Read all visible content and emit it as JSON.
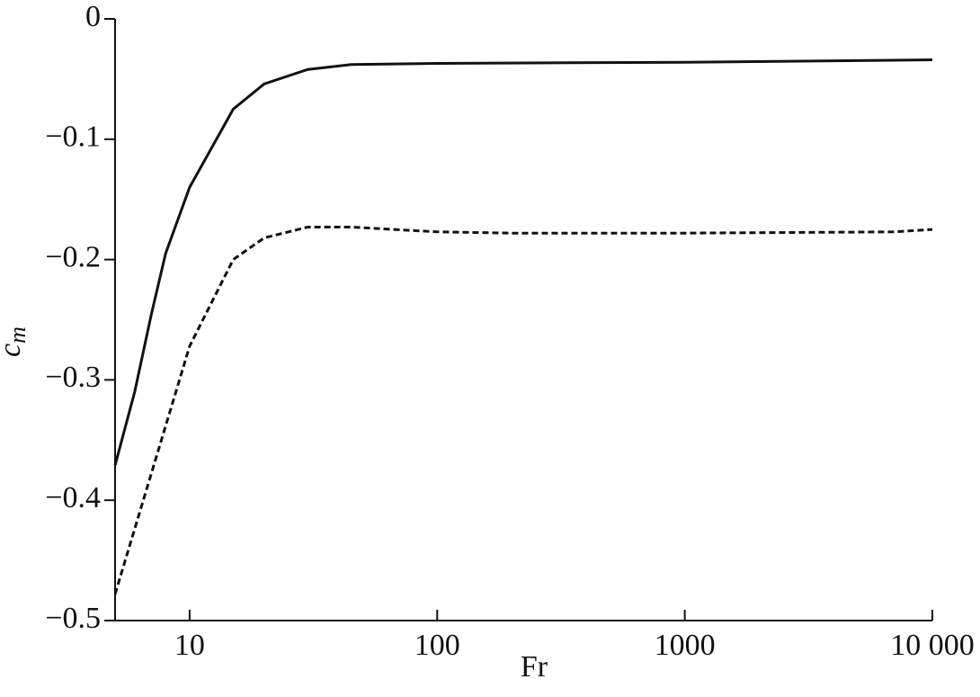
{
  "chart_data": {
    "type": "line",
    "xlabel": "Fr",
    "ylabel": {
      "base": "c",
      "sub": "m"
    },
    "x_scale": "log",
    "xlim": [
      5,
      10000
    ],
    "ylim": [
      -0.5,
      0
    ],
    "xticks": [
      10,
      100,
      1000,
      {
        "value": 10000,
        "label": "10 000"
      }
    ],
    "yticks": [
      0,
      {
        "value": -0.1,
        "label": "−0.1"
      },
      {
        "value": -0.2,
        "label": "−0.2"
      },
      {
        "value": -0.3,
        "label": "−0.3"
      },
      {
        "value": -0.4,
        "label": "−0.4"
      },
      {
        "value": -0.5,
        "label": "−0.5"
      }
    ],
    "series": [
      {
        "x": [
          5,
          6,
          7,
          8,
          10,
          15,
          20,
          30,
          45,
          100,
          1000,
          10000
        ],
        "values": [
          -0.371,
          -0.31,
          -0.246,
          -0.195,
          -0.14,
          -0.075,
          -0.054,
          -0.042,
          -0.038,
          -0.037,
          -0.036,
          -0.034
        ],
        "color": "#111111",
        "dash": "solid"
      },
      {
        "x": [
          5,
          10,
          15,
          20,
          30,
          45,
          100,
          200,
          1000,
          7000,
          10000
        ],
        "values": [
          -0.478,
          -0.272,
          -0.2,
          -0.182,
          -0.173,
          -0.173,
          -0.177,
          -0.178,
          -0.178,
          -0.177,
          -0.175
        ],
        "color": "#111111",
        "dash": "dashed"
      }
    ]
  }
}
